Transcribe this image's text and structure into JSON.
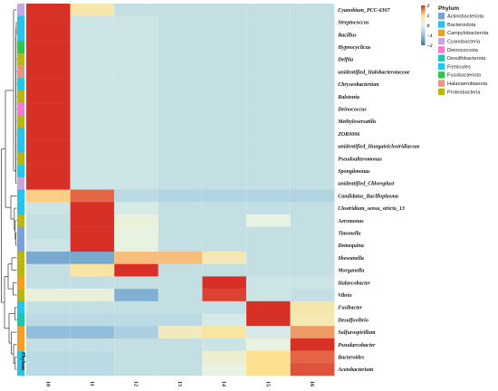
{
  "chart_data": {
    "type": "heatmap",
    "columns": [
      "10",
      "11",
      "12",
      "13",
      "14",
      "15",
      "16"
    ],
    "annotation_label": "Phylum",
    "rows": [
      {
        "name": "Cyanobium_PCC-6307",
        "phylum": "Cyanobacteria",
        "values": [
          2.2,
          0.7,
          -0.4,
          -0.4,
          -0.4,
          -0.4,
          -0.4
        ]
      },
      {
        "name": "Streptococcus",
        "phylum": "Firmicutes",
        "values": [
          2.3,
          -0.3,
          -0.3,
          -0.4,
          -0.4,
          -0.4,
          -0.4
        ]
      },
      {
        "name": "Bacillus",
        "phylum": "Firmicutes",
        "values": [
          2.3,
          -0.3,
          -0.3,
          -0.4,
          -0.4,
          -0.4,
          -0.4
        ]
      },
      {
        "name": "Hypnocyclicus",
        "phylum": "Fusobacteriota",
        "values": [
          2.3,
          -0.3,
          -0.3,
          -0.4,
          -0.4,
          -0.4,
          -0.4
        ]
      },
      {
        "name": "Delftia",
        "phylum": "Proteobacteria",
        "values": [
          2.3,
          -0.3,
          -0.3,
          -0.4,
          -0.4,
          -0.4,
          -0.4
        ]
      },
      {
        "name": "unidentified_Halobacterotaceae",
        "phylum": "Halanaerobiaeota",
        "values": [
          2.3,
          -0.3,
          -0.3,
          -0.4,
          -0.4,
          -0.4,
          -0.4
        ]
      },
      {
        "name": "Chryseobacterium",
        "phylum": "Bacteroidota",
        "values": [
          2.3,
          -0.3,
          -0.3,
          -0.4,
          -0.4,
          -0.4,
          -0.4
        ]
      },
      {
        "name": "Ralstonia",
        "phylum": "Proteobacteria",
        "values": [
          2.3,
          -0.3,
          -0.3,
          -0.4,
          -0.4,
          -0.4,
          -0.4
        ]
      },
      {
        "name": "Deinococcus",
        "phylum": "Deinococcota",
        "values": [
          2.3,
          -0.3,
          -0.3,
          -0.4,
          -0.4,
          -0.4,
          -0.4
        ]
      },
      {
        "name": "Methyloversatilis",
        "phylum": "Proteobacteria",
        "values": [
          2.3,
          -0.3,
          -0.3,
          -0.4,
          -0.4,
          -0.4,
          -0.4
        ]
      },
      {
        "name": "ZOR0006",
        "phylum": "Firmicutes",
        "values": [
          2.3,
          -0.3,
          -0.3,
          -0.4,
          -0.4,
          -0.4,
          -0.4
        ]
      },
      {
        "name": "unidentified_Hungateiclostridiaceae",
        "phylum": "Firmicutes",
        "values": [
          2.3,
          -0.3,
          -0.3,
          -0.4,
          -0.4,
          -0.4,
          -0.4
        ]
      },
      {
        "name": "Pseudoalteromonas",
        "phylum": "Proteobacteria",
        "values": [
          2.3,
          -0.3,
          -0.3,
          -0.4,
          -0.4,
          -0.4,
          -0.4
        ]
      },
      {
        "name": "Spongiimonas",
        "phylum": "Bacteroidota",
        "values": [
          2.3,
          -0.3,
          -0.3,
          -0.4,
          -0.4,
          -0.4,
          -0.4
        ]
      },
      {
        "name": "unidentified_Chloroplast",
        "phylum": "Cyanobacteria",
        "values": [
          2.3,
          -0.3,
          -0.3,
          -0.4,
          -0.4,
          -0.4,
          -0.4
        ]
      },
      {
        "name": "Candidatus_Bacilloplasma",
        "phylum": "Firmicutes",
        "values": [
          1.1,
          1.7,
          -0.5,
          -0.6,
          -0.6,
          -0.6,
          -0.6
        ]
      },
      {
        "name": "Clostridium_sensu_stricto_13",
        "phylum": "Firmicutes",
        "values": [
          -0.3,
          2.3,
          -0.2,
          -0.4,
          -0.4,
          -0.4,
          -0.4
        ]
      },
      {
        "name": "Aeromonas",
        "phylum": "Proteobacteria",
        "values": [
          -0.4,
          2.3,
          0.2,
          -0.4,
          -0.4,
          0.1,
          -0.4
        ]
      },
      {
        "name": "Timonella",
        "phylum": "Actinobacteriota",
        "values": [
          -0.4,
          2.3,
          0.1,
          -0.4,
          -0.4,
          -0.4,
          -0.4
        ]
      },
      {
        "name": "Demequina",
        "phylum": "Actinobacteriota",
        "values": [
          -0.3,
          2.3,
          0.1,
          -0.4,
          -0.4,
          -0.4,
          -0.4
        ]
      },
      {
        "name": "Shewanella",
        "phylum": "Proteobacteria",
        "values": [
          -1.3,
          -1.3,
          1.2,
          1.2,
          0.6,
          -0.4,
          -0.4
        ]
      },
      {
        "name": "Morganella",
        "phylum": "Proteobacteria",
        "values": [
          -0.4,
          0.8,
          2.1,
          -0.4,
          -0.4,
          -0.4,
          -0.4
        ]
      },
      {
        "name": "Halarcobacter",
        "phylum": "Campylobacterota",
        "values": [
          -0.4,
          -0.4,
          -0.4,
          -0.4,
          2.3,
          -0.3,
          -0.3
        ]
      },
      {
        "name": "Vibrio",
        "phylum": "Proteobacteria",
        "values": [
          0.2,
          0.2,
          -1.2,
          -0.4,
          1.9,
          -0.3,
          -0.4
        ]
      },
      {
        "name": "Fusibacter",
        "phylum": "Firmicutes",
        "values": [
          -0.4,
          -0.4,
          -0.4,
          -0.4,
          -0.4,
          2.1,
          0.7
        ]
      },
      {
        "name": "Desulfovibrio",
        "phylum": "Desulfobacterota",
        "values": [
          -0.5,
          -0.5,
          -0.5,
          -0.5,
          -0.2,
          2.1,
          0.6
        ]
      },
      {
        "name": "Sulfurospirillum",
        "phylum": "Campylobacterota",
        "values": [
          -1.0,
          -1.0,
          -0.7,
          0.5,
          0.8,
          -0.2,
          1.4
        ]
      },
      {
        "name": "Pseudarcobacter",
        "phylum": "Campylobacterota",
        "values": [
          -0.4,
          -0.4,
          -0.4,
          -0.4,
          -0.3,
          0.1,
          2.3
        ]
      },
      {
        "name": "Bacteroides",
        "phylum": "Bacteroidota",
        "values": [
          -0.5,
          -0.5,
          -0.4,
          -0.4,
          0.3,
          1.0,
          1.7
        ]
      },
      {
        "name": "Acetobacterium",
        "phylum": "Firmicutes",
        "values": [
          -0.5,
          -0.5,
          -0.4,
          -0.4,
          0.1,
          1.0,
          1.8
        ]
      }
    ],
    "color_scale": {
      "ticks": [
        "2",
        "1",
        "0",
        "−1",
        "−2"
      ],
      "range": [
        -2,
        2
      ],
      "stops": [
        "#4575b4",
        "#91bfdb",
        "#e6f4ea",
        "#fee090",
        "#d73027"
      ]
    },
    "legend": {
      "title": "Phylum",
      "items": [
        {
          "label": "Actinobacteriota",
          "color": "#7b9fd6"
        },
        {
          "label": "Bacteroidota",
          "color": "#1fc8e6"
        },
        {
          "label": "Campylobacterota",
          "color": "#f59d24"
        },
        {
          "label": "Cyanobacteria",
          "color": "#c8a5e0"
        },
        {
          "label": "Deinococcota",
          "color": "#f47ad5"
        },
        {
          "label": "Desulfobacterota",
          "color": "#14c9b0"
        },
        {
          "label": "Firmicutes",
          "color": "#26c4e8"
        },
        {
          "label": "Fusobacteriota",
          "color": "#2fc44a"
        },
        {
          "label": "Halanaerobiaeota",
          "color": "#e8938a"
        },
        {
          "label": "Proteobacteria",
          "color": "#b8b613"
        }
      ]
    }
  }
}
